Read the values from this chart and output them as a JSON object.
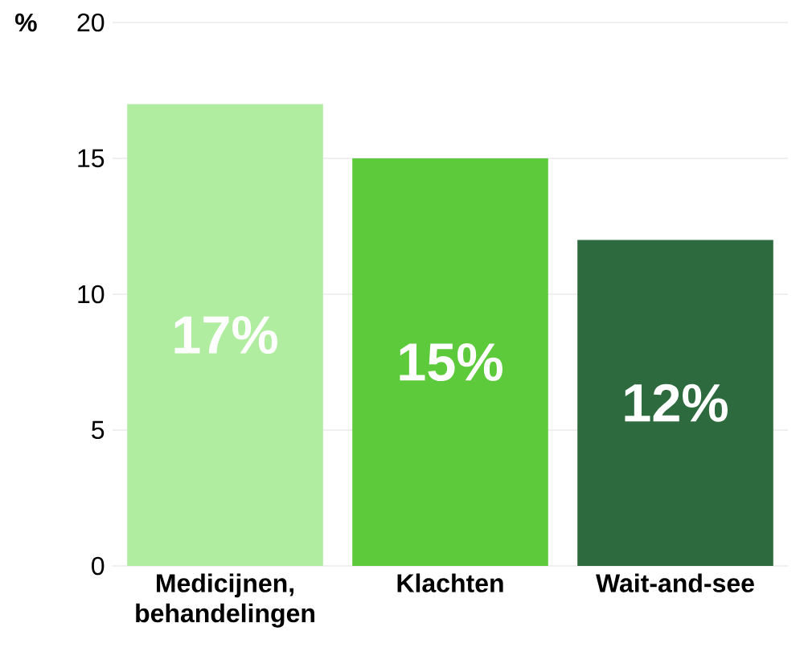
{
  "chart_data": {
    "type": "bar",
    "ylabel": "%",
    "categories": [
      "Medicijnen, behandelingen",
      "Klachten",
      "Wait-and-see"
    ],
    "values": [
      17,
      15,
      12
    ],
    "colors": [
      "#b0eda0",
      "#5dca3c",
      "#2d6a3d"
    ],
    "value_labels": [
      "17%",
      "15%",
      "12%"
    ],
    "ylim": [
      0,
      20
    ],
    "yticks": [
      0,
      5,
      10,
      15,
      20
    ],
    "grid": "y"
  }
}
